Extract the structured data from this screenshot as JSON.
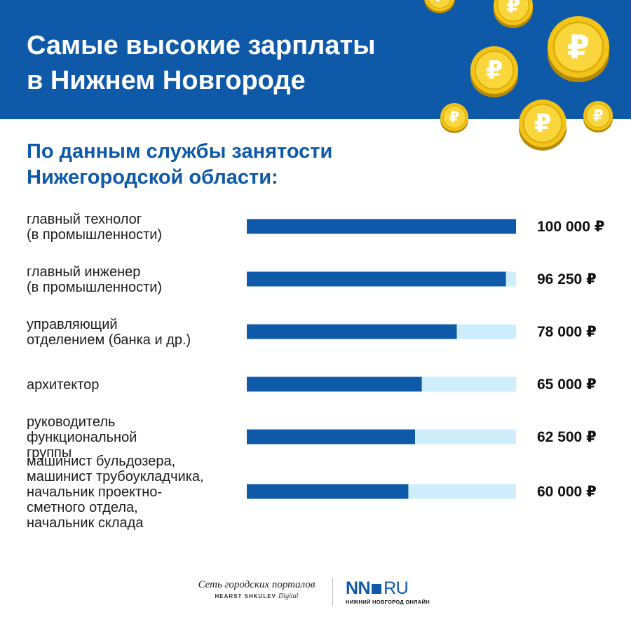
{
  "header": {
    "title_line1": "Самые высокие зарплаты",
    "title_line2": "в Нижнем Новгороде",
    "background_color": "#0e5aa8",
    "coin_symbol": "₽",
    "coin_icon": "ruble-coin-icon"
  },
  "subtitle": {
    "line1": "По данным службы занятости",
    "line2": "Нижегородской области:"
  },
  "chart_data": {
    "type": "bar",
    "orientation": "horizontal",
    "title": "Самые высокие зарплаты в Нижнем Новгороде",
    "subtitle": "По данным службы занятости Нижегородской области:",
    "xlim": [
      0,
      100000
    ],
    "unit": "₽",
    "grid": false,
    "bar_color": "#0e5aa8",
    "track_color": "#cdeefa",
    "categories": [
      [
        "главный технолог",
        "(в промышленности)"
      ],
      [
        "главный инженер",
        "(в промышленности)"
      ],
      [
        "управляющий",
        "отделением (банка и др.)"
      ],
      [
        "архитектор"
      ],
      [
        "руководитель",
        "функциональной",
        "группы"
      ],
      [
        "машинист бульдозера,",
        "машинист трубоукладчика,",
        "начальник проектно-",
        "сметного отдела,",
        "начальник склада"
      ]
    ],
    "values": [
      100000,
      96250,
      78000,
      65000,
      62500,
      60000
    ],
    "value_labels": [
      "100 000 ₽",
      "96 250 ₽",
      "78 000 ₽",
      "65 000 ₽",
      "62 500 ₽",
      "60 000 ₽"
    ]
  },
  "footer": {
    "portal_text": "Сеть городских порталов",
    "hearst_text": "HEARST SHKULEV",
    "hearst_digital": "Digital",
    "logo_nn": "NN",
    "logo_ru": "RU",
    "logo_subtitle": "НИЖНИЙ НОВГОРОД ОНЛАЙН"
  }
}
